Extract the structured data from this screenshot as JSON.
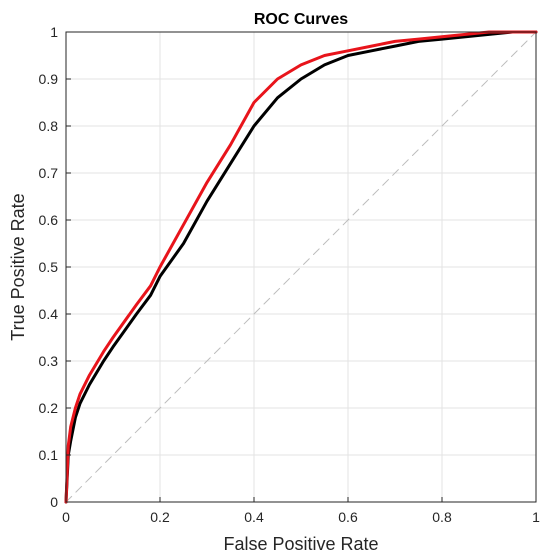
{
  "chart_data": {
    "type": "line",
    "title": "ROC Curves",
    "xlabel": "False Positive Rate",
    "ylabel": "True Positive Rate",
    "xlim": [
      0,
      1
    ],
    "ylim": [
      0,
      1
    ],
    "xticks": [
      "0",
      "0.2",
      "0.4",
      "0.6",
      "0.8",
      "1"
    ],
    "yticks": [
      "0",
      "0.1",
      "0.2",
      "0.3",
      "0.4",
      "0.5",
      "0.6",
      "0.7",
      "0.8",
      "0.9",
      "1"
    ],
    "grid": true,
    "legend": "none",
    "colors": {
      "series_red": "#e8141b",
      "series_black": "#000000",
      "diagonal": "#bdbdbd",
      "grid": "#e3e3e3"
    },
    "series": [
      {
        "color": "#e8141b",
        "x": [
          0,
          0.005,
          0.01,
          0.02,
          0.03,
          0.05,
          0.08,
          0.1,
          0.15,
          0.18,
          0.2,
          0.25,
          0.3,
          0.35,
          0.4,
          0.45,
          0.5,
          0.55,
          0.6,
          0.65,
          0.7,
          0.75,
          0.8,
          0.85,
          0.9,
          0.95,
          1.0
        ],
        "y": [
          0,
          0.12,
          0.16,
          0.2,
          0.23,
          0.27,
          0.32,
          0.35,
          0.42,
          0.46,
          0.5,
          0.59,
          0.68,
          0.76,
          0.85,
          0.9,
          0.93,
          0.95,
          0.96,
          0.97,
          0.98,
          0.985,
          0.99,
          0.995,
          1.0,
          1.0,
          1.0
        ]
      },
      {
        "color": "#000000",
        "x": [
          0,
          0.005,
          0.01,
          0.02,
          0.03,
          0.05,
          0.08,
          0.1,
          0.15,
          0.18,
          0.2,
          0.25,
          0.3,
          0.35,
          0.4,
          0.45,
          0.5,
          0.55,
          0.6,
          0.65,
          0.7,
          0.75,
          0.8,
          0.85,
          0.9,
          0.95,
          1.0
        ],
        "y": [
          0,
          0.1,
          0.13,
          0.18,
          0.21,
          0.25,
          0.3,
          0.33,
          0.4,
          0.44,
          0.48,
          0.55,
          0.64,
          0.72,
          0.8,
          0.86,
          0.9,
          0.93,
          0.95,
          0.96,
          0.97,
          0.98,
          0.985,
          0.99,
          0.995,
          1.0,
          1.0
        ]
      },
      {
        "color": "#bdbdbd",
        "dashed": true,
        "x": [
          0,
          1
        ],
        "y": [
          0,
          1
        ]
      }
    ]
  }
}
